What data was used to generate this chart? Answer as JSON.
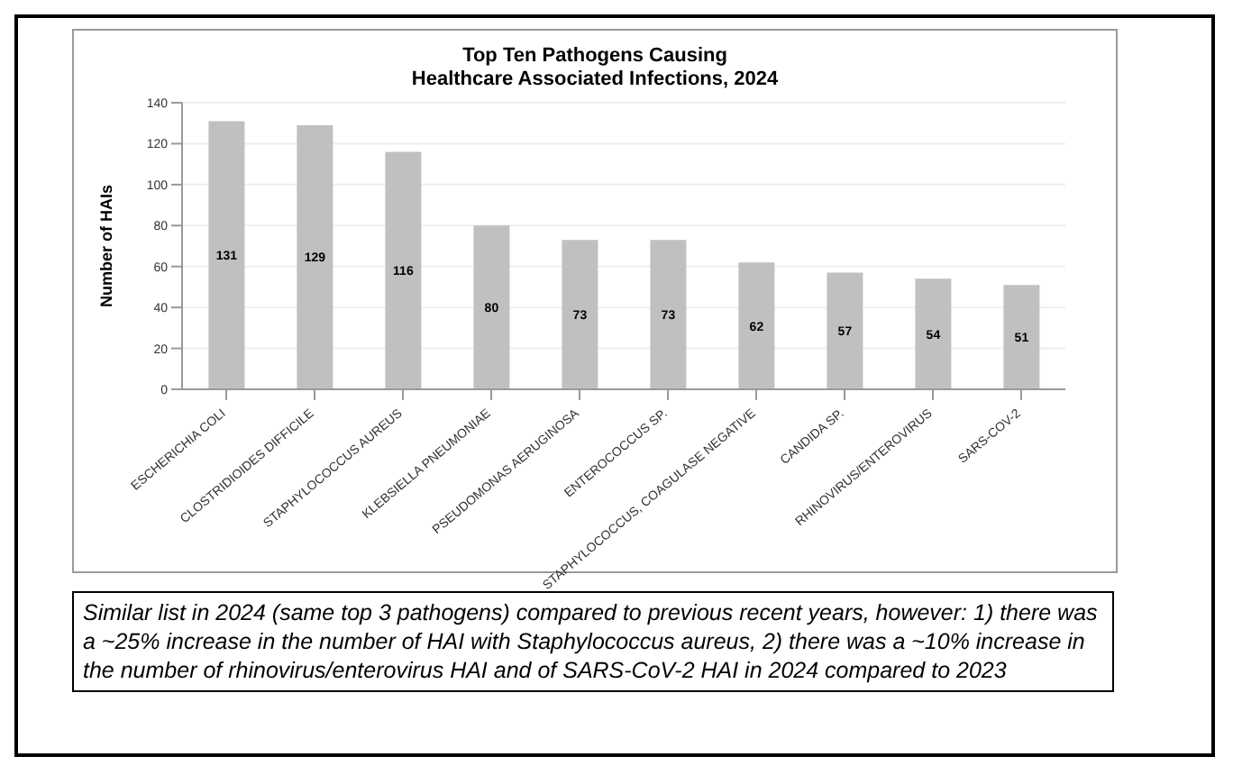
{
  "chart_data": {
    "type": "bar",
    "title": "Top Ten Pathogens Causing\nHealthcare Associated Infections, 2024",
    "ylabel": "Number of HAIs",
    "categories": [
      "ESCHERICHIA COLI",
      "CLOSTRIDIOIDES DIFFICILE",
      "STAPHYLOCOCCUS AUREUS",
      "KLEBSIELLA PNEUMONIAE",
      "PSEUDOMONAS AERUGINOSA",
      "ENTEROCOCCUS SP.",
      "STAPHYLOCOCCUS, COAGULASE NEGATIVE",
      "CANDIDA SP.",
      "RHINOVIRUS/ENTEROVIRUS",
      "SARS-COV-2"
    ],
    "values": [
      131,
      129,
      116,
      80,
      73,
      73,
      62,
      57,
      54,
      51
    ],
    "color": "#c0c0c0",
    "ylim": [
      0,
      140
    ],
    "yticks": [
      0,
      20,
      40,
      60,
      80,
      100,
      120,
      140
    ],
    "grid": "y",
    "data_labels": true,
    "legend": false,
    "annotations": [
      "Similar list in 2024 (same top 3 pathogens) compared to previous recent years, however: 1) there was a ~25% increase in the number of HAI with Staphylococcus aureus, 2) there was a ~10% increase in the number of rhinovirus/enterovirus HAI and of SARS-CoV-2 HAI in 2024 compared to 2023"
    ]
  }
}
